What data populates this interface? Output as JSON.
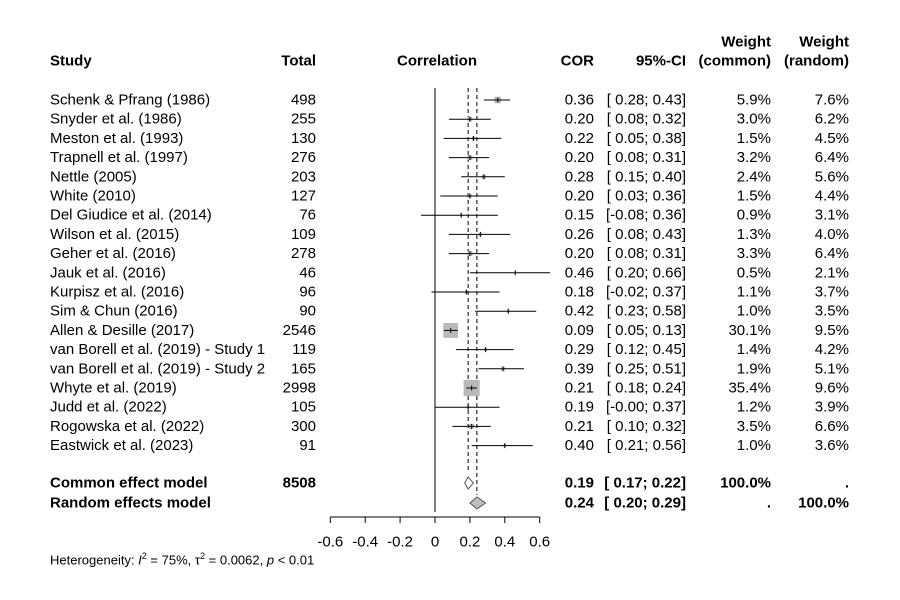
{
  "chart_data": {
    "type": "forest",
    "headers": {
      "study": "Study",
      "total": "Total",
      "plot": "Correlation",
      "cor": "COR",
      "ci": "95%-CI",
      "weight_common_top": "Weight",
      "weight_common_bottom": "(common)",
      "weight_random_top": "Weight",
      "weight_random_bottom": "(random)"
    },
    "x_axis": {
      "ticks": [
        "-0.6",
        "-0.4",
        "-0.2",
        "0",
        "0.2",
        "0.4",
        "0.6"
      ],
      "range": [
        -0.6,
        0.6
      ],
      "reference_line": 0,
      "common_estimate_line": 0.19,
      "random_estimate_line": 0.24
    },
    "studies": [
      {
        "study": "Schenk & Pfrang (1986)",
        "total": "498",
        "cor": 0.36,
        "lower": 0.28,
        "upper": 0.43,
        "cor_text": "0.36",
        "ci_text": "[ 0.28; 0.43]",
        "w_common": "5.9%",
        "w_random": "7.6%",
        "w": 5.9
      },
      {
        "study": "Snyder et al. (1986)",
        "total": "255",
        "cor": 0.2,
        "lower": 0.08,
        "upper": 0.32,
        "cor_text": "0.20",
        "ci_text": "[ 0.08; 0.32]",
        "w_common": "3.0%",
        "w_random": "6.2%",
        "w": 3.0
      },
      {
        "study": "Meston et al. (1993)",
        "total": "130",
        "cor": 0.22,
        "lower": 0.05,
        "upper": 0.38,
        "cor_text": "0.22",
        "ci_text": "[ 0.05; 0.38]",
        "w_common": "1.5%",
        "w_random": "4.5%",
        "w": 1.5
      },
      {
        "study": "Trapnell et al. (1997)",
        "total": "276",
        "cor": 0.2,
        "lower": 0.08,
        "upper": 0.31,
        "cor_text": "0.20",
        "ci_text": "[ 0.08; 0.31]",
        "w_common": "3.2%",
        "w_random": "6.4%",
        "w": 3.2
      },
      {
        "study": "Nettle (2005)",
        "total": "203",
        "cor": 0.28,
        "lower": 0.15,
        "upper": 0.4,
        "cor_text": "0.28",
        "ci_text": "[ 0.15; 0.40]",
        "w_common": "2.4%",
        "w_random": "5.6%",
        "w": 2.4
      },
      {
        "study": "White (2010)",
        "total": "127",
        "cor": 0.2,
        "lower": 0.03,
        "upper": 0.36,
        "cor_text": "0.20",
        "ci_text": "[ 0.03; 0.36]",
        "w_common": "1.5%",
        "w_random": "4.4%",
        "w": 1.5
      },
      {
        "study": "Del Giudice et al. (2014)",
        "total": "76",
        "cor": 0.15,
        "lower": -0.08,
        "upper": 0.36,
        "cor_text": "0.15",
        "ci_text": "[-0.08; 0.36]",
        "w_common": "0.9%",
        "w_random": "3.1%",
        "w": 0.9
      },
      {
        "study": "Wilson et al. (2015)",
        "total": "109",
        "cor": 0.26,
        "lower": 0.08,
        "upper": 0.43,
        "cor_text": "0.26",
        "ci_text": "[ 0.08; 0.43]",
        "w_common": "1.3%",
        "w_random": "4.0%",
        "w": 1.3
      },
      {
        "study": "Geher et al. (2016)",
        "total": "278",
        "cor": 0.2,
        "lower": 0.08,
        "upper": 0.31,
        "cor_text": "0.20",
        "ci_text": "[ 0.08; 0.31]",
        "w_common": "3.3%",
        "w_random": "6.4%",
        "w": 3.3
      },
      {
        "study": "Jauk et al. (2016)",
        "total": "46",
        "cor": 0.46,
        "lower": 0.2,
        "upper": 0.66,
        "cor_text": "0.46",
        "ci_text": "[ 0.20; 0.66]",
        "w_common": "0.5%",
        "w_random": "2.1%",
        "w": 0.5
      },
      {
        "study": "Kurpisz et al. (2016)",
        "total": "96",
        "cor": 0.18,
        "lower": -0.02,
        "upper": 0.37,
        "cor_text": "0.18",
        "ci_text": "[-0.02; 0.37]",
        "w_common": "1.1%",
        "w_random": "3.7%",
        "w": 1.1
      },
      {
        "study": "Sim & Chun (2016)",
        "total": "90",
        "cor": 0.42,
        "lower": 0.23,
        "upper": 0.58,
        "cor_text": "0.42",
        "ci_text": "[ 0.23; 0.58]",
        "w_common": "1.0%",
        "w_random": "3.5%",
        "w": 1.0
      },
      {
        "study": "Allen & Desille (2017)",
        "total": "2546",
        "cor": 0.09,
        "lower": 0.05,
        "upper": 0.13,
        "cor_text": "0.09",
        "ci_text": "[ 0.05; 0.13]",
        "w_common": "30.1%",
        "w_random": "9.5%",
        "w": 30.1
      },
      {
        "study": "van Borell et al. (2019) - Study 1",
        "total": "119",
        "cor": 0.29,
        "lower": 0.12,
        "upper": 0.45,
        "cor_text": "0.29",
        "ci_text": "[ 0.12; 0.45]",
        "w_common": "1.4%",
        "w_random": "4.2%",
        "w": 1.4
      },
      {
        "study": "van Borell et al. (2019) - Study 2",
        "total": "165",
        "cor": 0.39,
        "lower": 0.25,
        "upper": 0.51,
        "cor_text": "0.39",
        "ci_text": "[ 0.25; 0.51]",
        "w_common": "1.9%",
        "w_random": "5.1%",
        "w": 1.9
      },
      {
        "study": "Whyte et al. (2019)",
        "total": "2998",
        "cor": 0.21,
        "lower": 0.18,
        "upper": 0.24,
        "cor_text": "0.21",
        "ci_text": "[ 0.18; 0.24]",
        "w_common": "35.4%",
        "w_random": "9.6%",
        "w": 35.4
      },
      {
        "study": "Judd et al. (2022)",
        "total": "105",
        "cor": 0.19,
        "lower": -0.0,
        "upper": 0.37,
        "cor_text": "0.19",
        "ci_text": "[-0.00; 0.37]",
        "w_common": "1.2%",
        "w_random": "3.9%",
        "w": 1.2
      },
      {
        "study": "Rogowska et al. (2022)",
        "total": "300",
        "cor": 0.21,
        "lower": 0.1,
        "upper": 0.32,
        "cor_text": "0.21",
        "ci_text": "[ 0.10; 0.32]",
        "w_common": "3.5%",
        "w_random": "6.6%",
        "w": 3.5
      },
      {
        "study": "Eastwick et al. (2023)",
        "total": "91",
        "cor": 0.4,
        "lower": 0.21,
        "upper": 0.56,
        "cor_text": "0.40",
        "ci_text": "[ 0.21; 0.56]",
        "w_common": "1.0%",
        "w_random": "3.6%",
        "w": 1.0
      }
    ],
    "summary": [
      {
        "label": "Common effect model",
        "total": "8508",
        "cor": 0.19,
        "lower": 0.17,
        "upper": 0.22,
        "cor_text": "0.19",
        "ci_text": "[ 0.17; 0.22]",
        "w_common": "100.0%",
        "w_random": "."
      },
      {
        "label": "Random effects model",
        "total": "",
        "cor": 0.24,
        "lower": 0.2,
        "upper": 0.29,
        "cor_text": "0.24",
        "ci_text": "[ 0.20; 0.29]",
        "w_common": ".",
        "w_random": "100.0%"
      }
    ],
    "heterogeneity": {
      "prefix": "Heterogeneity: ",
      "i2_symbol": "I",
      "i2_value": " = 75%, ",
      "tau2_symbol": "τ",
      "tau2_value": " = 0.0062, ",
      "p_symbol": "p",
      "p_value": " < 0.01"
    }
  }
}
